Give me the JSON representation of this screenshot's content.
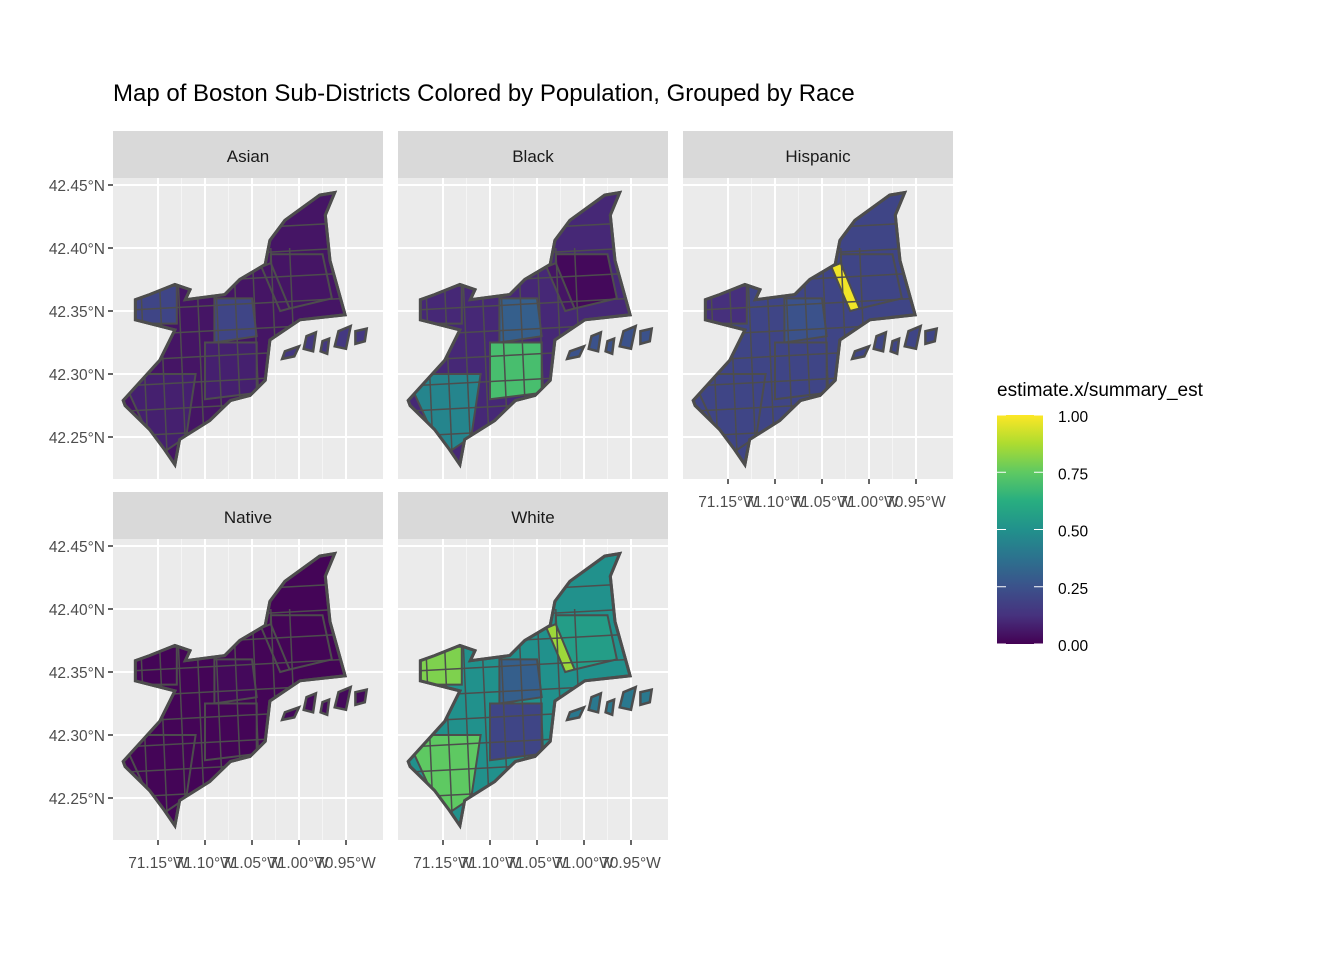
{
  "title": "Map of Boston Sub-Districts Colored by Population, Grouped by Race",
  "chart_data": {
    "type": "choropleth-map",
    "title": "Map of Boston Sub-Districts Colored by Population, Grouped by Race",
    "facets": [
      "Asian",
      "Black",
      "Hispanic",
      "Native",
      "White"
    ],
    "x_ticks": [
      -71.15,
      -71.1,
      -71.05,
      -71.0,
      -70.95
    ],
    "x_tick_labels": [
      "71.15°W",
      "71.10°W",
      "71.05°W",
      "71.00°W",
      "70.95°W"
    ],
    "y_ticks": [
      42.45,
      42.4,
      42.35,
      42.3,
      42.25
    ],
    "y_tick_labels": [
      "42.45°N",
      "42.40°N",
      "42.35°N",
      "42.30°N",
      "42.25°N"
    ],
    "legend": {
      "title": "estimate.x/summary_est",
      "scale": "viridis",
      "range": [
        0,
        1
      ],
      "breaks": [
        1.0,
        0.75,
        0.5,
        0.25,
        0.0
      ],
      "labels": [
        "1.00",
        "0.75",
        "0.50",
        "0.25",
        "0.00"
      ]
    },
    "outline": [
      [
        -71.187,
        42.279
      ],
      [
        -71.148,
        42.311
      ],
      [
        -71.132,
        42.335
      ],
      [
        -71.174,
        42.343
      ],
      [
        -71.174,
        42.359
      ],
      [
        -71.159,
        42.363
      ],
      [
        -71.132,
        42.371
      ],
      [
        -71.116,
        42.367
      ],
      [
        -71.121,
        42.359
      ],
      [
        -71.079,
        42.363
      ],
      [
        -71.063,
        42.375
      ],
      [
        -71.036,
        42.387
      ],
      [
        -71.031,
        42.406
      ],
      [
        -71.015,
        42.422
      ],
      [
        -70.978,
        42.442
      ],
      [
        -70.962,
        42.444
      ],
      [
        -70.972,
        42.426
      ],
      [
        -70.967,
        42.39
      ],
      [
        -70.951,
        42.347
      ],
      [
        -70.999,
        42.343
      ],
      [
        -71.031,
        42.327
      ],
      [
        -71.036,
        42.295
      ],
      [
        -71.052,
        42.283
      ],
      [
        -71.073,
        42.279
      ],
      [
        -71.095,
        42.263
      ],
      [
        -71.127,
        42.248
      ],
      [
        -71.132,
        42.228
      ],
      [
        -71.143,
        42.24
      ],
      [
        -71.159,
        42.256
      ],
      [
        -71.185,
        42.275
      ]
    ],
    "islands": [
      [
        [
          -71.015,
          42.318
        ],
        [
          -71.0,
          42.322
        ],
        [
          -71.005,
          42.314
        ],
        [
          -71.018,
          42.312
        ]
      ],
      [
        [
          -70.992,
          42.33
        ],
        [
          -70.982,
          42.333
        ],
        [
          -70.985,
          42.318
        ],
        [
          -70.995,
          42.32
        ]
      ],
      [
        [
          -70.975,
          42.326
        ],
        [
          -70.968,
          42.328
        ],
        [
          -70.97,
          42.316
        ],
        [
          -70.977,
          42.318
        ]
      ],
      [
        [
          -70.958,
          42.334
        ],
        [
          -70.945,
          42.338
        ],
        [
          -70.95,
          42.32
        ],
        [
          -70.962,
          42.322
        ]
      ],
      [
        [
          -70.94,
          42.334
        ],
        [
          -70.928,
          42.336
        ],
        [
          -70.93,
          42.326
        ],
        [
          -70.94,
          42.324
        ]
      ]
    ],
    "regions": {
      "north": [
        [
          -71.03,
          42.395
        ],
        [
          -70.975,
          42.395
        ],
        [
          -70.965,
          42.36
        ],
        [
          -71.01,
          42.352
        ],
        [
          -71.03,
          42.37
        ]
      ],
      "central": [
        [
          -71.09,
          42.36
        ],
        [
          -71.05,
          42.36
        ],
        [
          -71.045,
          42.33
        ],
        [
          -71.09,
          42.325
        ]
      ],
      "south": [
        [
          -71.1,
          42.325
        ],
        [
          -71.045,
          42.325
        ],
        [
          -71.045,
          42.285
        ],
        [
          -71.1,
          42.28
        ]
      ],
      "west": [
        [
          -71.18,
          42.37
        ],
        [
          -71.13,
          42.37
        ],
        [
          -71.13,
          42.34
        ],
        [
          -71.18,
          42.34
        ]
      ],
      "southwest": [
        [
          -71.19,
          42.3
        ],
        [
          -71.11,
          42.3
        ],
        [
          -71.12,
          42.25
        ],
        [
          -71.15,
          42.235
        ]
      ],
      "harbor_strip": [
        [
          -71.04,
          42.385
        ],
        [
          -71.03,
          42.388
        ],
        [
          -71.01,
          42.352
        ],
        [
          -71.02,
          42.35
        ]
      ]
    },
    "values": {
      "Asian": {
        "base": 0.05,
        "north": 0.05,
        "central": 0.2,
        "south": 0.08,
        "west": 0.2,
        "southwest": 0.08,
        "harbor_strip": 0.05
      },
      "Black": {
        "base": 0.1,
        "north": 0.02,
        "central": 0.3,
        "south": 0.7,
        "west": 0.1,
        "southwest": 0.45,
        "harbor_strip": 0.05
      },
      "Hispanic": {
        "base": 0.2,
        "north": 0.2,
        "central": 0.25,
        "south": 0.2,
        "west": 0.12,
        "southwest": 0.2,
        "harbor_strip": 0.98
      },
      "Native": {
        "base": 0.01,
        "north": 0.01,
        "central": 0.02,
        "south": 0.01,
        "west": 0.01,
        "southwest": 0.01,
        "harbor_strip": 0.01
      },
      "White": {
        "base": 0.5,
        "north": 0.55,
        "central": 0.3,
        "south": 0.2,
        "west": 0.8,
        "southwest": 0.75,
        "harbor_strip": 0.85
      }
    },
    "island_values": {
      "Asian": 0.15,
      "Black": 0.25,
      "Hispanic": 0.2,
      "Native": 0.02,
      "White": 0.4
    }
  },
  "colors": {
    "panel_bg": "#ebebeb",
    "strip_bg": "#d9d9d9",
    "grid": "#ffffff",
    "border": "#4d4d4d"
  }
}
